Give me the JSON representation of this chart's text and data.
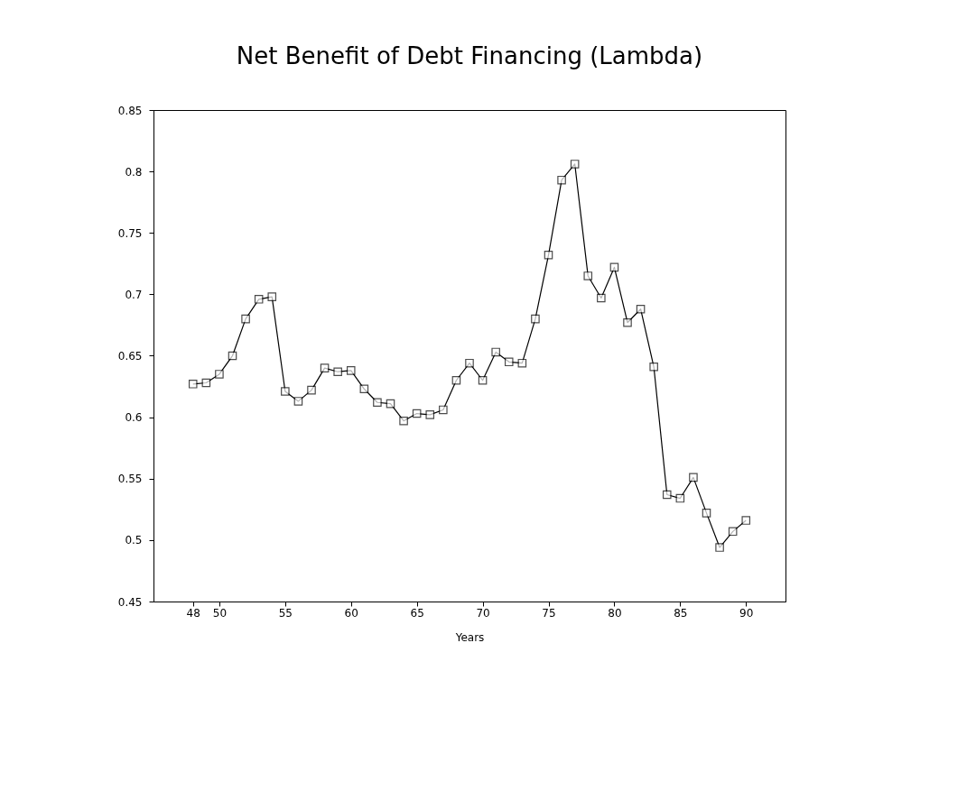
{
  "chart_data": {
    "type": "line",
    "title": "Net Benefit of Debt Financing (Lambda)",
    "xlabel": "Years",
    "x": [
      48,
      49,
      50,
      51,
      52,
      53,
      54,
      55,
      56,
      57,
      58,
      59,
      60,
      61,
      62,
      63,
      64,
      65,
      66,
      67,
      68,
      69,
      70,
      71,
      72,
      73,
      74,
      75,
      76,
      77,
      78,
      79,
      80,
      81,
      82,
      83,
      84,
      85,
      86,
      87,
      88,
      89,
      90
    ],
    "series": [
      {
        "color": "#000000",
        "values": [
          0.627,
          0.628,
          0.635,
          0.65,
          0.68,
          0.696,
          0.698,
          0.621,
          0.613,
          0.622,
          0.64,
          0.637,
          0.638,
          0.623,
          0.612,
          0.611,
          0.597,
          0.603,
          0.602,
          0.606,
          0.63,
          0.644,
          0.63,
          0.653,
          0.645,
          0.644,
          0.68,
          0.732,
          0.793,
          0.806,
          0.715,
          0.697,
          0.722,
          0.677,
          0.688,
          0.641,
          0.537,
          0.534,
          0.551,
          0.522,
          0.494,
          0.507,
          0.516
        ]
      }
    ],
    "xlim": [
      45,
      93
    ],
    "xticks": [
      48,
      50,
      55,
      60,
      65,
      70,
      75,
      80,
      85,
      90
    ],
    "ylim": [
      0.45,
      0.85
    ],
    "yticks": [
      0.45,
      0.5,
      0.55,
      0.6,
      0.65,
      0.7,
      0.75,
      0.8,
      0.85
    ],
    "marker": "square",
    "line_style": "solid",
    "grid": false,
    "legend": false
  }
}
